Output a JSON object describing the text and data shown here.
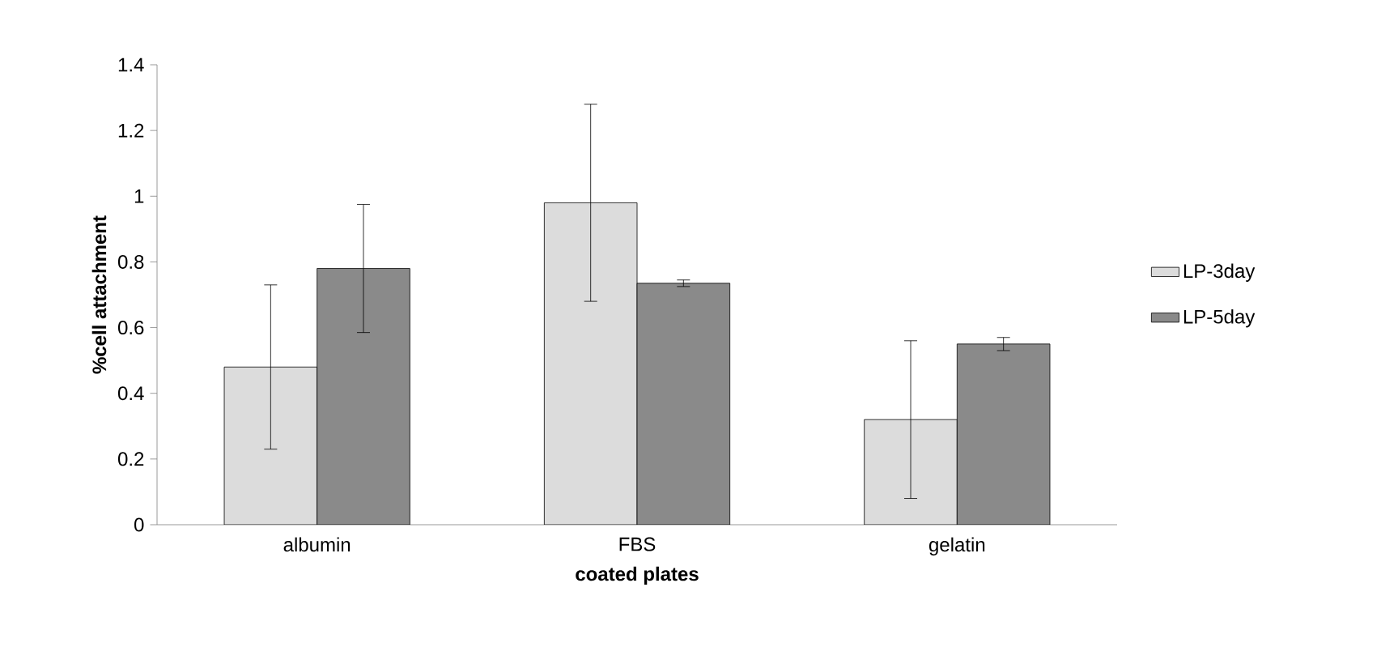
{
  "chart_data": {
    "type": "bar",
    "xlabel": "coated plates",
    "ylabel": "%cell attachment",
    "categories": [
      "albumin",
      "FBS",
      "gelatin"
    ],
    "series": [
      {
        "name": "LP-3day",
        "color": "#dcdcdc",
        "values": [
          0.48,
          0.98,
          0.32
        ],
        "errors": [
          0.25,
          0.3,
          0.24
        ]
      },
      {
        "name": "LP-5day",
        "color": "#8a8a8a",
        "values": [
          0.78,
          0.735,
          0.55
        ],
        "errors": [
          0.195,
          0.01,
          0.02
        ]
      }
    ],
    "ylim": [
      0,
      1.4
    ],
    "yticks": [
      0,
      0.2,
      0.4,
      0.6,
      0.8,
      1,
      1.2,
      1.4
    ],
    "legend": "right"
  }
}
